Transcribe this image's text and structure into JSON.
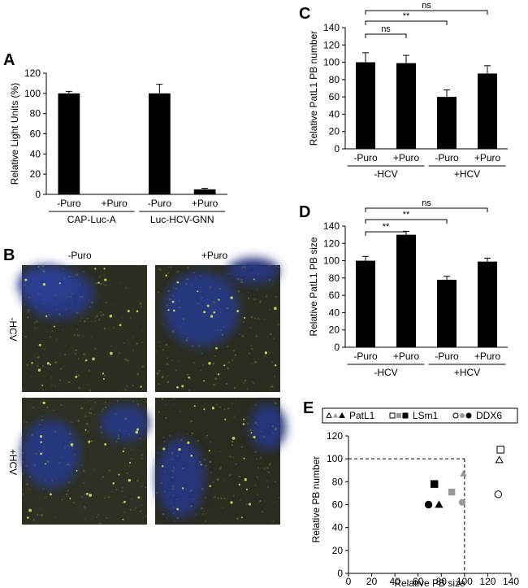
{
  "chart_data": [
    {
      "panel": "A",
      "type": "bar",
      "ylabel": "Relative Light Units (%)",
      "ylim": [
        0,
        120
      ],
      "yticks": [
        0,
        20,
        40,
        60,
        80,
        100,
        120
      ],
      "categories": [
        "-Puro",
        "+Puro",
        "-Puro",
        "+Puro"
      ],
      "groups": [
        {
          "label": "CAP-Luc-A",
          "members": [
            0,
            1
          ]
        },
        {
          "label": "Luc-HCV-GNN",
          "members": [
            2,
            3
          ]
        }
      ],
      "values": [
        100,
        0,
        100,
        5
      ],
      "errors": [
        2,
        0,
        9,
        1
      ]
    },
    {
      "panel": "C",
      "type": "bar",
      "ylabel": "Relative PatL1 PB number",
      "ylim": [
        0,
        140
      ],
      "yticks": [
        0,
        20,
        40,
        60,
        80,
        100,
        120,
        140
      ],
      "categories": [
        "-Puro",
        "+Puro",
        "-Puro",
        "+Puro"
      ],
      "groups": [
        {
          "label": "-HCV",
          "members": [
            0,
            1
          ]
        },
        {
          "label": "+HCV",
          "members": [
            2,
            3
          ]
        }
      ],
      "values": [
        100,
        99,
        60,
        87
      ],
      "errors": [
        11,
        9,
        8,
        9
      ],
      "significance": [
        {
          "from": 0,
          "to": 1,
          "label": "ns"
        },
        {
          "from": 0,
          "to": 2,
          "label": "**"
        },
        {
          "from": 0,
          "to": 3,
          "label": "ns"
        }
      ]
    },
    {
      "panel": "D",
      "type": "bar",
      "ylabel": "Relative PatL1 PB size",
      "ylim": [
        0,
        140
      ],
      "yticks": [
        0,
        20,
        40,
        60,
        80,
        100,
        120,
        140
      ],
      "categories": [
        "-Puro",
        "+Puro",
        "-Puro",
        "+Puro"
      ],
      "groups": [
        {
          "label": "-HCV",
          "members": [
            0,
            1
          ]
        },
        {
          "label": "+HCV",
          "members": [
            2,
            3
          ]
        }
      ],
      "values": [
        100,
        130,
        78,
        99
      ],
      "errors": [
        5,
        4,
        4,
        4
      ],
      "significance": [
        {
          "from": 0,
          "to": 1,
          "label": "**"
        },
        {
          "from": 0,
          "to": 2,
          "label": "**"
        },
        {
          "from": 0,
          "to": 3,
          "label": "ns"
        }
      ]
    },
    {
      "panel": "E",
      "type": "scatter",
      "xlabel": "Relative PB size",
      "ylabel": "Relative PB number",
      "xlim": [
        0,
        140
      ],
      "ylim": [
        0,
        120
      ],
      "xticks": [
        0,
        20,
        40,
        60,
        80,
        100,
        120,
        140
      ],
      "yticks": [
        0,
        20,
        40,
        60,
        80,
        100,
        120
      ],
      "reference_lines": {
        "x": 100,
        "y": 100
      },
      "legend": [
        {
          "label": "PatL1",
          "marker": "triangle"
        },
        {
          "label": "LSm1",
          "marker": "square"
        },
        {
          "label": "DDX6",
          "marker": "circle"
        }
      ],
      "legend_placement": "top",
      "points": [
        {
          "series": "PatL1",
          "condition": "+HCV +Puro",
          "x": 99,
          "y": 87,
          "marker": "triangle",
          "fill": "#999999"
        },
        {
          "series": "PatL1",
          "condition": "+Puro",
          "x": 130,
          "y": 99,
          "marker": "triangle",
          "fill": "#ffffff"
        },
        {
          "series": "PatL1",
          "condition": "+HCV",
          "x": 78,
          "y": 60,
          "marker": "triangle",
          "fill": "#000000"
        },
        {
          "series": "LSm1",
          "condition": "+HCV +Puro",
          "x": 89,
          "y": 71,
          "marker": "square",
          "fill": "#999999"
        },
        {
          "series": "LSm1",
          "condition": "+Puro",
          "x": 131,
          "y": 108,
          "marker": "square",
          "fill": "#ffffff"
        },
        {
          "series": "LSm1",
          "condition": "+HCV",
          "x": 74,
          "y": 78,
          "marker": "square",
          "fill": "#000000"
        },
        {
          "series": "DDX6",
          "condition": "+HCV +Puro",
          "x": 98,
          "y": 62,
          "marker": "circle",
          "fill": "#999999"
        },
        {
          "series": "DDX6",
          "condition": "+Puro",
          "x": 129,
          "y": 69,
          "marker": "circle",
          "fill": "#ffffff"
        },
        {
          "series": "DDX6",
          "condition": "+HCV",
          "x": 69,
          "y": 60,
          "marker": "circle",
          "fill": "#000000"
        }
      ]
    }
  ],
  "panel_B": {
    "label": "B",
    "col_labels": [
      "-Puro",
      "+Puro"
    ],
    "row_labels": [
      "-HCV",
      "+HCV"
    ],
    "images": [
      {
        "name": "micrograph-minus-hcv-minus-puro"
      },
      {
        "name": "micrograph-minus-hcv-plus-puro"
      },
      {
        "name": "micrograph-plus-hcv-minus-puro"
      },
      {
        "name": "micrograph-plus-hcv-plus-puro"
      }
    ]
  },
  "colors": {
    "bar": "#000000",
    "nucleus": "#2a3a8a",
    "background": "#2c2e22",
    "puncta": "#e6ee66"
  }
}
